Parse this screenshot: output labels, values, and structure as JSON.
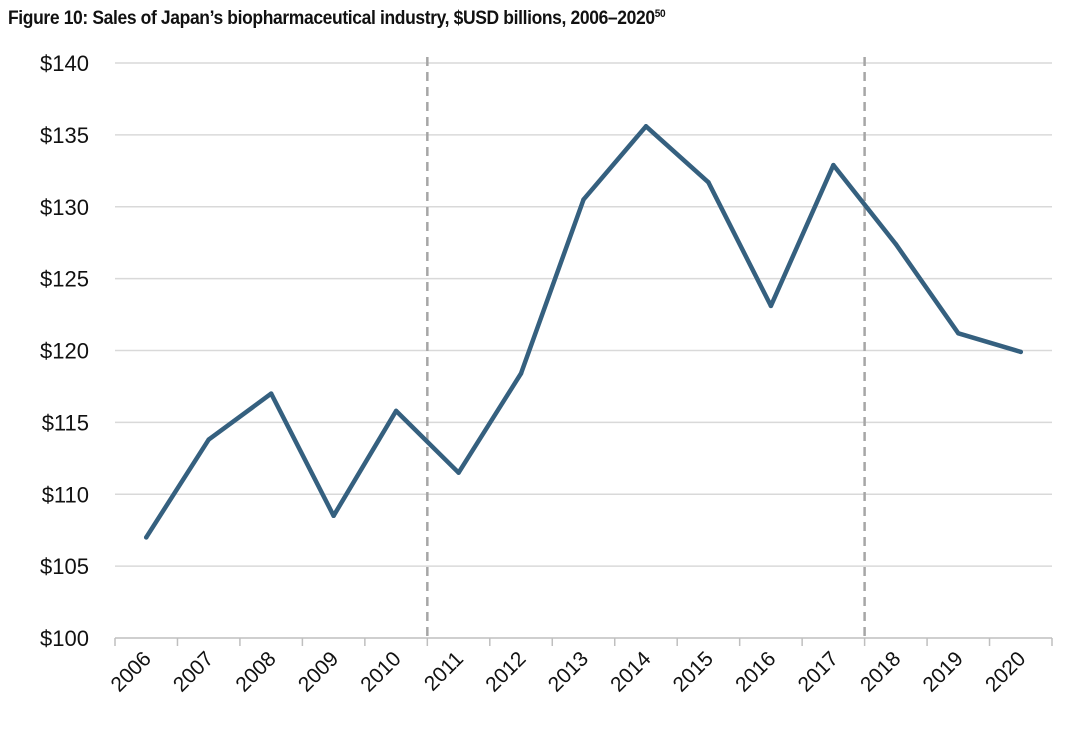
{
  "title": {
    "text": "Figure 10: Sales of Japan’s biopharmaceutical industry, $USD billions, 2006–2020",
    "footnote": "50"
  },
  "chart_data": {
    "type": "line",
    "categories": [
      "2006",
      "2007",
      "2008",
      "2009",
      "2010",
      "2011",
      "2012",
      "2013",
      "2014",
      "2015",
      "2016",
      "2017",
      "2018",
      "2019",
      "2020"
    ],
    "series": [
      {
        "values": [
          107.0,
          113.8,
          117.0,
          108.5,
          115.8,
          111.5,
          118.4,
          130.5,
          135.6,
          131.7,
          123.1,
          132.9,
          127.4,
          121.2,
          119.9
        ],
        "color": "#35607f"
      }
    ],
    "ylim": [
      100,
      140
    ],
    "yticks": [
      100,
      105,
      110,
      115,
      120,
      125,
      130,
      135,
      140
    ],
    "ytick_labels": [
      "$100",
      "$105",
      "$110",
      "$115",
      "$120",
      "$125",
      "$130",
      "$135",
      "$140"
    ],
    "reference_lines": [
      {
        "position": "between 2010 and 2011",
        "style": "dashed",
        "color": "#a6a6a6"
      },
      {
        "position": "between 2017 and 2018",
        "style": "dashed",
        "color": "#a6a6a6"
      }
    ],
    "xlabel": "",
    "ylabel": "",
    "grid": "horizontal",
    "legend": "none"
  }
}
